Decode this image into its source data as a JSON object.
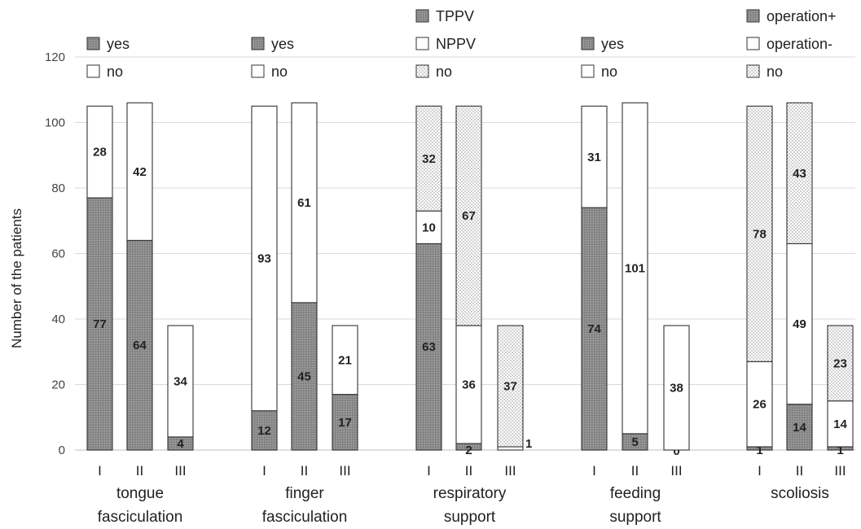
{
  "chart_data": {
    "type": "bar",
    "stacked": true,
    "ylabel": "Number of the patients",
    "ylim": [
      0,
      120
    ],
    "yticks": [
      0,
      20,
      40,
      60,
      80,
      100,
      120
    ],
    "grid": true,
    "sub_categories": [
      "I",
      "II",
      "III"
    ],
    "colors": {
      "filled": "#8c8c8c",
      "open": "#ffffff",
      "dotted_bg": "#ffffff",
      "dot": "#9a9a9a",
      "outline": "#333333",
      "grid": "#d9d9d9",
      "text": "#222222"
    },
    "groups": [
      {
        "label_lines": [
          "tongue",
          "fasciculation"
        ],
        "legend": [
          {
            "name": "yes",
            "pattern": "filled"
          },
          {
            "name": "no",
            "pattern": "open"
          }
        ],
        "bars": [
          {
            "category": "I",
            "segments": [
              {
                "series": "yes",
                "value": 77,
                "pattern": "filled"
              },
              {
                "series": "no",
                "value": 28,
                "pattern": "open"
              }
            ]
          },
          {
            "category": "II",
            "segments": [
              {
                "series": "yes",
                "value": 64,
                "pattern": "filled"
              },
              {
                "series": "no",
                "value": 42,
                "pattern": "open"
              }
            ]
          },
          {
            "category": "III",
            "segments": [
              {
                "series": "yes",
                "value": 4,
                "pattern": "filled"
              },
              {
                "series": "no",
                "value": 34,
                "pattern": "open"
              }
            ]
          }
        ]
      },
      {
        "label_lines": [
          "finger",
          "fasciculation"
        ],
        "legend": [
          {
            "name": "yes",
            "pattern": "filled"
          },
          {
            "name": "no",
            "pattern": "open"
          }
        ],
        "bars": [
          {
            "category": "I",
            "segments": [
              {
                "series": "yes",
                "value": 12,
                "pattern": "filled"
              },
              {
                "series": "no",
                "value": 93,
                "pattern": "open"
              }
            ]
          },
          {
            "category": "II",
            "segments": [
              {
                "series": "yes",
                "value": 45,
                "pattern": "filled"
              },
              {
                "series": "no",
                "value": 61,
                "pattern": "open"
              }
            ]
          },
          {
            "category": "III",
            "segments": [
              {
                "series": "yes",
                "value": 17,
                "pattern": "filled"
              },
              {
                "series": "no",
                "value": 21,
                "pattern": "open"
              }
            ]
          }
        ]
      },
      {
        "label_lines": [
          "respiratory",
          "support"
        ],
        "legend": [
          {
            "name": "TPPV",
            "pattern": "filled"
          },
          {
            "name": "NPPV",
            "pattern": "open"
          },
          {
            "name": "no",
            "pattern": "dotted"
          }
        ],
        "bars": [
          {
            "category": "I",
            "segments": [
              {
                "series": "TPPV",
                "value": 63,
                "pattern": "filled"
              },
              {
                "series": "NPPV",
                "value": 10,
                "pattern": "open"
              },
              {
                "series": "no",
                "value": 32,
                "pattern": "dotted"
              }
            ]
          },
          {
            "category": "II",
            "segments": [
              {
                "series": "TPPV",
                "value": 2,
                "pattern": "filled"
              },
              {
                "series": "NPPV",
                "value": 36,
                "pattern": "open"
              },
              {
                "series": "no",
                "value": 67,
                "pattern": "dotted"
              }
            ]
          },
          {
            "category": "III",
            "segments": [
              {
                "series": "TPPV",
                "value": 0,
                "pattern": "filled",
                "hide_label": true
              },
              {
                "series": "NPPV",
                "value": 1,
                "pattern": "open",
                "outside_label": true
              },
              {
                "series": "no",
                "value": 37,
                "pattern": "dotted"
              }
            ]
          }
        ]
      },
      {
        "label_lines": [
          "feeding",
          "support"
        ],
        "legend": [
          {
            "name": "yes",
            "pattern": "filled"
          },
          {
            "name": "no",
            "pattern": "open"
          }
        ],
        "bars": [
          {
            "category": "I",
            "segments": [
              {
                "series": "yes",
                "value": 74,
                "pattern": "filled"
              },
              {
                "series": "no",
                "value": 31,
                "pattern": "open"
              }
            ]
          },
          {
            "category": "II",
            "segments": [
              {
                "series": "yes",
                "value": 5,
                "pattern": "filled"
              },
              {
                "series": "no",
                "value": 101,
                "pattern": "open"
              }
            ]
          },
          {
            "category": "III",
            "segments": [
              {
                "series": "yes",
                "value": 0,
                "pattern": "filled"
              },
              {
                "series": "no",
                "value": 38,
                "pattern": "open"
              }
            ]
          }
        ]
      },
      {
        "label_lines": [
          "scoliosis"
        ],
        "legend": [
          {
            "name": "operation+",
            "pattern": "filled"
          },
          {
            "name": "operation-",
            "pattern": "open"
          },
          {
            "name": "no",
            "pattern": "dotted"
          }
        ],
        "bars": [
          {
            "category": "I",
            "segments": [
              {
                "series": "operation+",
                "value": 1,
                "pattern": "filled"
              },
              {
                "series": "operation-",
                "value": 26,
                "pattern": "open"
              },
              {
                "series": "no",
                "value": 78,
                "pattern": "dotted"
              }
            ]
          },
          {
            "category": "II",
            "segments": [
              {
                "series": "operation+",
                "value": 14,
                "pattern": "filled"
              },
              {
                "series": "operation-",
                "value": 49,
                "pattern": "open"
              },
              {
                "series": "no",
                "value": 43,
                "pattern": "dotted"
              }
            ]
          },
          {
            "category": "III",
            "segments": [
              {
                "series": "operation+",
                "value": 1,
                "pattern": "filled"
              },
              {
                "series": "operation-",
                "value": 14,
                "pattern": "open"
              },
              {
                "series": "no",
                "value": 23,
                "pattern": "dotted"
              }
            ]
          }
        ]
      }
    ]
  }
}
